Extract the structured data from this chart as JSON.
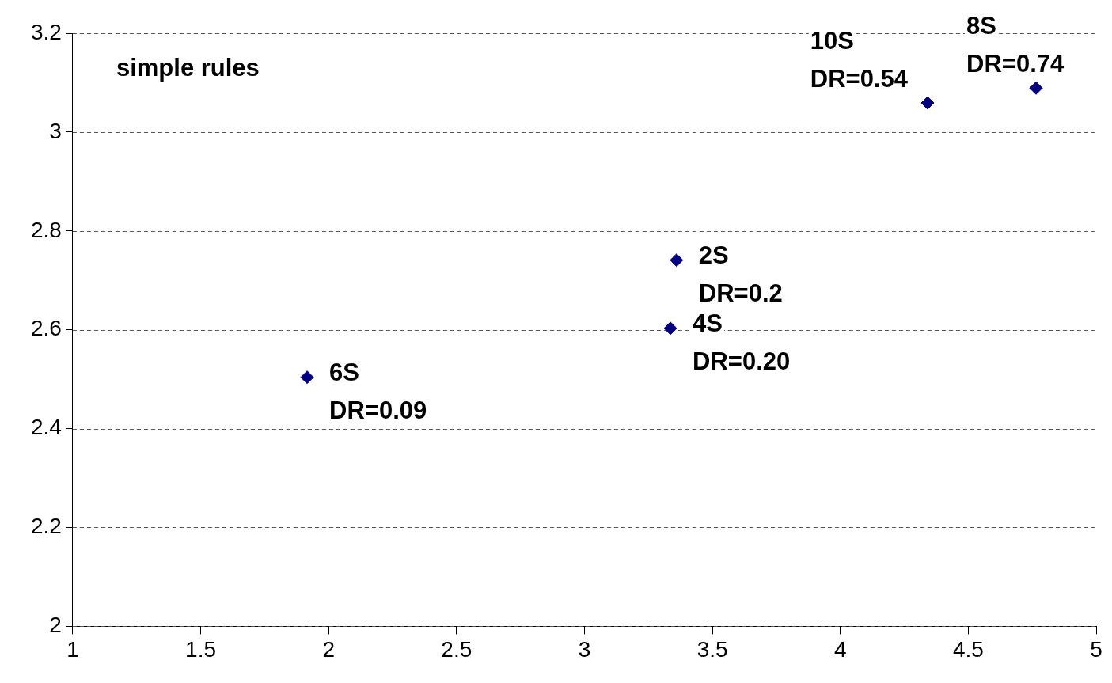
{
  "chart_data": {
    "type": "scatter",
    "x": [
      1.916,
      3.336,
      3.36,
      4.341,
      4.765
    ],
    "values": [
      2.504,
      2.603,
      2.741,
      3.059,
      3.089
    ],
    "color": "#000080",
    "marker": "diamond",
    "xlim": [
      1,
      5
    ],
    "xticks": [
      1,
      1.5,
      2,
      2.5,
      3,
      3.5,
      4,
      4.5,
      5
    ],
    "ylim": [
      2,
      3.2
    ],
    "yticks": [
      2,
      2.2,
      2.4,
      2.6,
      2.8,
      3,
      3.2
    ],
    "grid": "y",
    "line_style": "dashed",
    "legend": false,
    "annotations": [
      "simple rules",
      {
        "text": "6S\nDR=0.09",
        "x": 1.916,
        "y": 2.504
      },
      {
        "text": "4S\nDR=0.20",
        "x": 3.336,
        "y": 2.603
      },
      {
        "text": "2S\nDR=0.2",
        "x": 3.36,
        "y": 2.741
      },
      {
        "text": "10S\nDR=0.54",
        "x": 4.341,
        "y": 3.059
      },
      {
        "text": "8S\nDR=0.74",
        "x": 4.765,
        "y": 3.089
      }
    ]
  }
}
